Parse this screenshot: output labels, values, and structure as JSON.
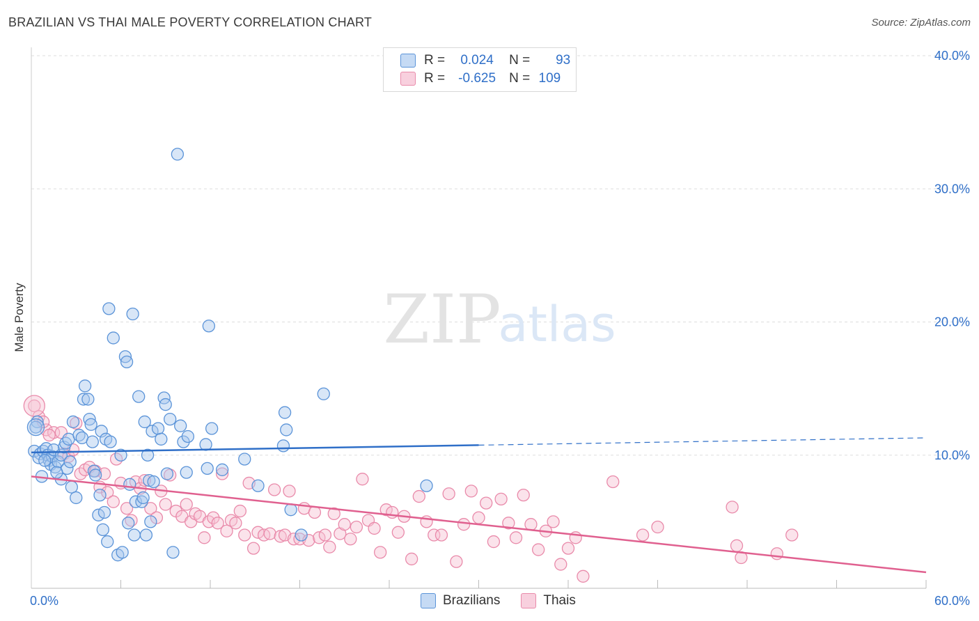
{
  "header": {
    "title": "BRAZILIAN VS THAI MALE POVERTY CORRELATION CHART",
    "source": "Source: ZipAtlas.com"
  },
  "watermark": {
    "zip": "ZIP",
    "atlas": "atlas"
  },
  "legend": {
    "rows": [
      {
        "r_label": "R =",
        "r_value": "0.024",
        "n_label": "N =",
        "n_value": "93"
      },
      {
        "r_label": "R =",
        "r_value": "-0.625",
        "n_label": "N =",
        "n_value": "109"
      }
    ]
  },
  "bottom_legend": {
    "items": [
      "Brazilians",
      "Thais"
    ]
  },
  "colors": {
    "blue_fill": "#a9c8ee",
    "blue_stroke": "#5a93d8",
    "blue_line": "#2f6fc8",
    "pink_fill": "#f6c1d3",
    "pink_stroke": "#e98aaa",
    "pink_line": "#e0608f",
    "axis_text": "#2f6fc8",
    "grid": "#dddddd"
  },
  "chart_data": {
    "type": "scatter",
    "ylabel": "Male Poverty",
    "xlim": [
      0,
      60
    ],
    "ylim": [
      0,
      40
    ],
    "x_tick_labels": [
      "0.0%",
      "60.0%"
    ],
    "y_tick_labels": [
      "10.0%",
      "20.0%",
      "30.0%",
      "40.0%"
    ],
    "y_ticks": [
      10,
      20,
      30,
      40
    ],
    "series": [
      {
        "name": "Brazilians",
        "color": "#5a93d8",
        "trend": {
          "x0": 0,
          "y0": 10.2,
          "x1": 60,
          "y1": 11.3,
          "solid_until": 30
        },
        "points": [
          [
            0.2,
            10.3
          ],
          [
            0.4,
            12.5
          ],
          [
            0.6,
            10.1
          ],
          [
            0.5,
            9.8
          ],
          [
            0.8,
            10.3
          ],
          [
            1.0,
            10.5
          ],
          [
            1.1,
            10.0
          ],
          [
            1.2,
            9.6
          ],
          [
            1.3,
            9.3
          ],
          [
            1.4,
            9.9
          ],
          [
            0.7,
            8.4
          ],
          [
            1.5,
            10.4
          ],
          [
            1.6,
            9.1
          ],
          [
            1.8,
            9.5
          ],
          [
            2.0,
            10.0
          ],
          [
            2.2,
            10.6
          ],
          [
            2.3,
            10.9
          ],
          [
            2.5,
            11.2
          ],
          [
            2.4,
            9.0
          ],
          [
            2.6,
            9.5
          ],
          [
            2.0,
            8.2
          ],
          [
            2.7,
            7.6
          ],
          [
            3.0,
            6.8
          ],
          [
            2.8,
            12.5
          ],
          [
            3.2,
            11.5
          ],
          [
            3.4,
            11.3
          ],
          [
            3.5,
            14.2
          ],
          [
            3.6,
            15.2
          ],
          [
            3.8,
            14.2
          ],
          [
            3.9,
            12.7
          ],
          [
            4.0,
            12.3
          ],
          [
            4.1,
            11.0
          ],
          [
            4.2,
            8.8
          ],
          [
            4.3,
            8.5
          ],
          [
            4.5,
            5.5
          ],
          [
            4.6,
            7.0
          ],
          [
            4.7,
            11.8
          ],
          [
            4.8,
            4.4
          ],
          [
            5.0,
            11.2
          ],
          [
            5.1,
            3.5
          ],
          [
            4.9,
            5.7
          ],
          [
            5.2,
            21.0
          ],
          [
            5.3,
            11.0
          ],
          [
            5.5,
            18.8
          ],
          [
            5.8,
            2.5
          ],
          [
            6.0,
            10.0
          ],
          [
            6.1,
            2.7
          ],
          [
            6.3,
            17.4
          ],
          [
            6.4,
            17.0
          ],
          [
            6.5,
            4.9
          ],
          [
            6.6,
            7.8
          ],
          [
            6.8,
            20.6
          ],
          [
            6.9,
            4.0
          ],
          [
            7.0,
            6.5
          ],
          [
            7.2,
            14.4
          ],
          [
            7.4,
            6.5
          ],
          [
            7.5,
            6.8
          ],
          [
            7.6,
            12.5
          ],
          [
            7.7,
            4.0
          ],
          [
            7.8,
            10.0
          ],
          [
            7.9,
            8.1
          ],
          [
            8.0,
            5.0
          ],
          [
            8.1,
            11.8
          ],
          [
            8.2,
            8.0
          ],
          [
            8.5,
            12.0
          ],
          [
            8.7,
            11.2
          ],
          [
            8.9,
            14.3
          ],
          [
            9.0,
            13.8
          ],
          [
            9.1,
            8.6
          ],
          [
            9.3,
            12.7
          ],
          [
            9.5,
            2.7
          ],
          [
            9.8,
            32.6
          ],
          [
            10.0,
            12.2
          ],
          [
            10.2,
            11.0
          ],
          [
            10.4,
            8.7
          ],
          [
            10.5,
            11.4
          ],
          [
            11.7,
            10.8
          ],
          [
            11.8,
            9.0
          ],
          [
            11.9,
            19.7
          ],
          [
            12.1,
            12.0
          ],
          [
            12.8,
            8.9
          ],
          [
            14.3,
            9.7
          ],
          [
            15.2,
            7.7
          ],
          [
            16.9,
            10.7
          ],
          [
            17.0,
            13.2
          ],
          [
            17.4,
            5.9
          ],
          [
            17.1,
            11.9
          ],
          [
            18.1,
            4.0
          ],
          [
            19.6,
            14.6
          ],
          [
            26.5,
            7.7
          ],
          [
            0.3,
            12.1
          ],
          [
            0.9,
            9.6
          ],
          [
            1.7,
            8.7
          ]
        ]
      },
      {
        "name": "Thais",
        "color": "#e98aaa",
        "trend": {
          "x0": 0,
          "y0": 8.4,
          "x1": 60,
          "y1": 1.2
        },
        "points": [
          [
            0.2,
            13.7
          ],
          [
            0.5,
            12.9
          ],
          [
            1.0,
            11.9
          ],
          [
            1.5,
            11.7
          ],
          [
            2.0,
            11.7
          ],
          [
            2.2,
            10.1
          ],
          [
            2.5,
            9.9
          ],
          [
            3.0,
            12.4
          ],
          [
            3.3,
            8.6
          ],
          [
            3.6,
            8.9
          ],
          [
            3.9,
            9.1
          ],
          [
            4.3,
            8.8
          ],
          [
            4.6,
            7.6
          ],
          [
            4.9,
            8.6
          ],
          [
            5.1,
            7.2
          ],
          [
            5.5,
            6.5
          ],
          [
            5.7,
            9.7
          ],
          [
            6.0,
            7.9
          ],
          [
            6.4,
            6.0
          ],
          [
            6.7,
            5.1
          ],
          [
            7.0,
            8.0
          ],
          [
            7.3,
            7.5
          ],
          [
            7.6,
            8.1
          ],
          [
            8.0,
            6.0
          ],
          [
            8.4,
            5.3
          ],
          [
            8.7,
            7.3
          ],
          [
            9.0,
            6.3
          ],
          [
            9.3,
            8.5
          ],
          [
            9.7,
            5.8
          ],
          [
            10.1,
            5.4
          ],
          [
            10.4,
            6.3
          ],
          [
            10.7,
            5.0
          ],
          [
            11.0,
            5.6
          ],
          [
            11.3,
            5.4
          ],
          [
            11.6,
            3.8
          ],
          [
            11.9,
            5.0
          ],
          [
            12.2,
            5.3
          ],
          [
            12.5,
            4.9
          ],
          [
            12.8,
            8.6
          ],
          [
            13.1,
            4.3
          ],
          [
            13.4,
            5.1
          ],
          [
            13.7,
            4.9
          ],
          [
            14.0,
            5.8
          ],
          [
            14.3,
            4.0
          ],
          [
            14.6,
            7.9
          ],
          [
            14.9,
            3.0
          ],
          [
            15.2,
            4.2
          ],
          [
            15.6,
            4.0
          ],
          [
            16.0,
            4.1
          ],
          [
            16.3,
            7.4
          ],
          [
            16.7,
            3.9
          ],
          [
            17.0,
            4.0
          ],
          [
            17.3,
            7.3
          ],
          [
            17.6,
            3.7
          ],
          [
            18.0,
            3.7
          ],
          [
            18.3,
            6.0
          ],
          [
            18.6,
            3.6
          ],
          [
            19.0,
            5.7
          ],
          [
            19.3,
            3.8
          ],
          [
            19.7,
            4.0
          ],
          [
            20.0,
            3.1
          ],
          [
            20.3,
            5.6
          ],
          [
            20.7,
            4.1
          ],
          [
            21.0,
            4.8
          ],
          [
            21.4,
            3.7
          ],
          [
            21.8,
            4.6
          ],
          [
            22.2,
            8.2
          ],
          [
            22.6,
            5.1
          ],
          [
            23.0,
            4.5
          ],
          [
            23.4,
            2.7
          ],
          [
            23.8,
            5.9
          ],
          [
            24.2,
            5.7
          ],
          [
            24.6,
            4.2
          ],
          [
            25.0,
            5.4
          ],
          [
            25.5,
            2.2
          ],
          [
            26.0,
            6.9
          ],
          [
            26.5,
            5.0
          ],
          [
            27.0,
            4.0
          ],
          [
            27.5,
            4.0
          ],
          [
            28.0,
            7.1
          ],
          [
            28.5,
            2.0
          ],
          [
            29.0,
            4.8
          ],
          [
            29.5,
            7.3
          ],
          [
            30.0,
            5.3
          ],
          [
            30.5,
            6.4
          ],
          [
            31.0,
            3.5
          ],
          [
            31.5,
            6.7
          ],
          [
            32.0,
            4.9
          ],
          [
            32.5,
            3.8
          ],
          [
            33.0,
            7.0
          ],
          [
            33.5,
            4.8
          ],
          [
            34.0,
            2.9
          ],
          [
            34.5,
            4.3
          ],
          [
            35.0,
            5.0
          ],
          [
            35.5,
            1.8
          ],
          [
            36.0,
            3.0
          ],
          [
            36.5,
            3.8
          ],
          [
            37.0,
            0.9
          ],
          [
            39.0,
            8.0
          ],
          [
            41.0,
            4.0
          ],
          [
            42.0,
            4.6
          ],
          [
            47.0,
            6.1
          ],
          [
            47.3,
            3.2
          ],
          [
            47.6,
            2.3
          ],
          [
            50.0,
            2.6
          ],
          [
            51.0,
            4.0
          ],
          [
            1.2,
            11.5
          ],
          [
            2.8,
            10.4
          ],
          [
            0.8,
            12.5
          ]
        ]
      }
    ]
  }
}
